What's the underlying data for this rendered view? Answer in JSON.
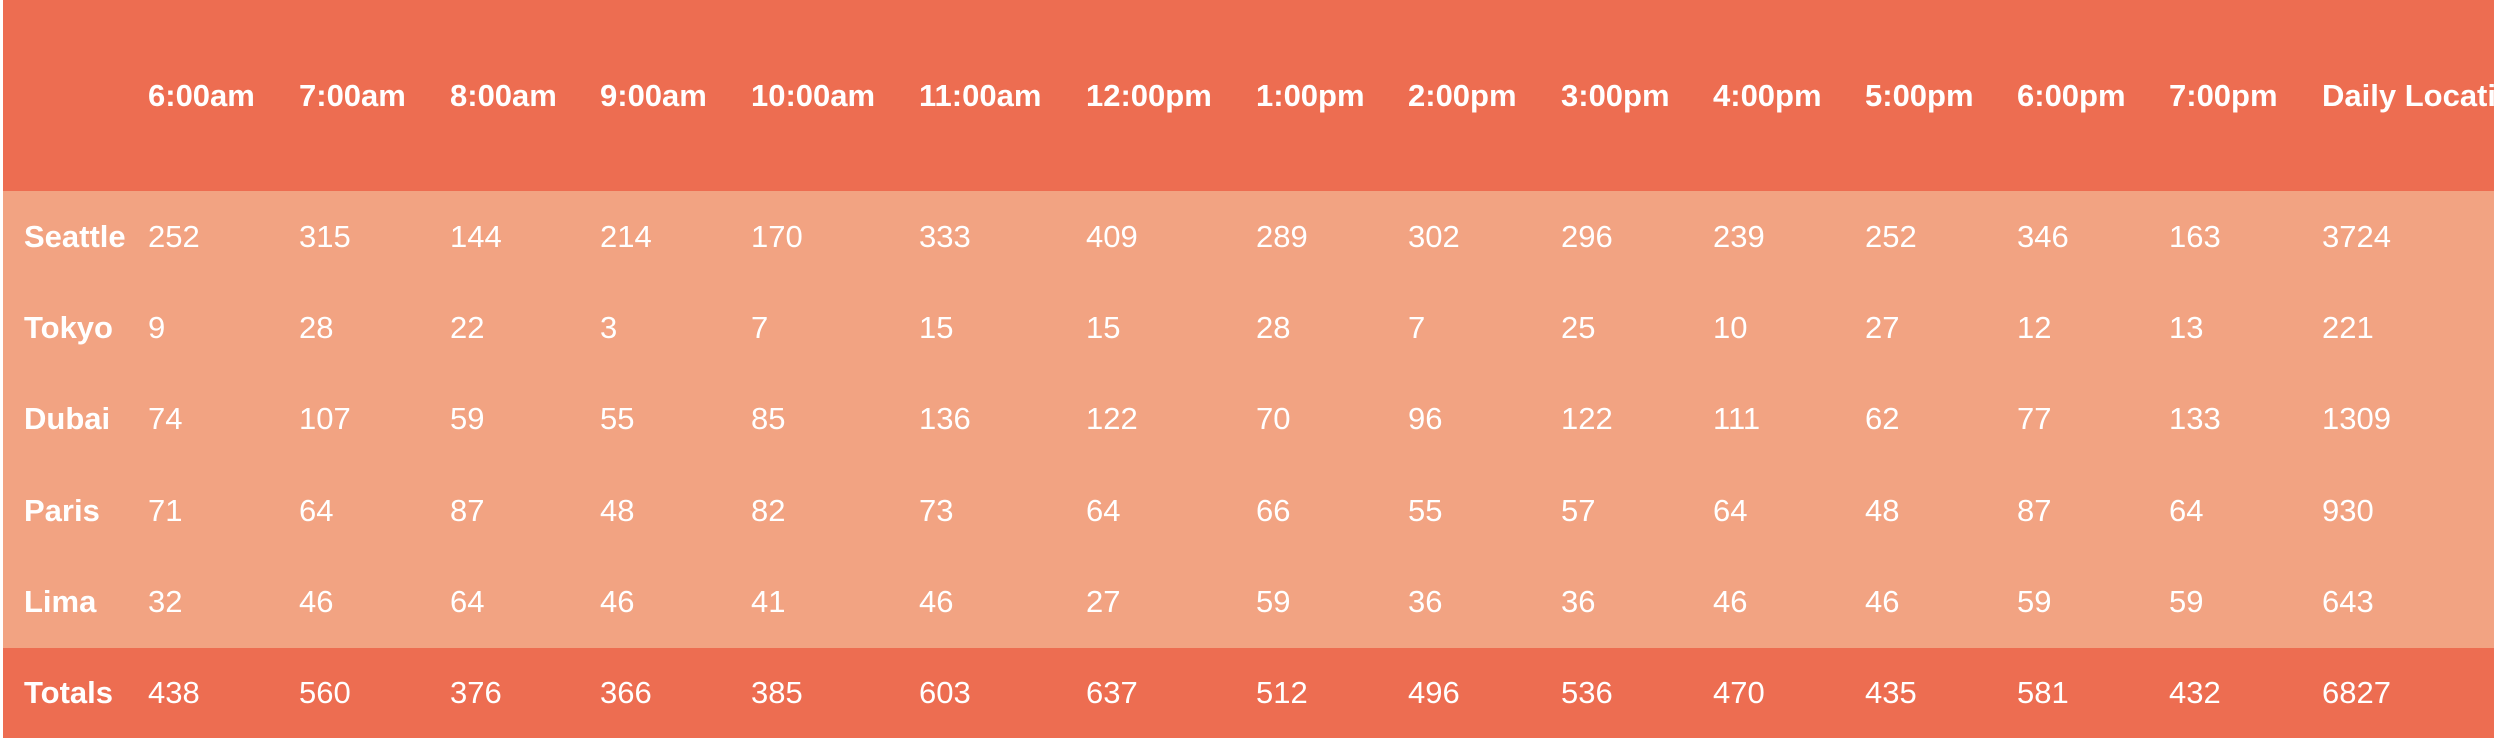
{
  "table": {
    "corner": "",
    "hours": [
      "6:00am",
      "7:00am",
      "8:00am",
      "9:00am",
      "10:00am",
      "11:00am",
      "12:00pm",
      "1:00pm",
      "2:00pm",
      "3:00pm",
      "4:00pm",
      "5:00pm",
      "6:00pm",
      "7:00pm"
    ],
    "total_header": "Daily Location Total",
    "rows": [
      {
        "location": "Seattle",
        "values": [
          "252",
          "315",
          "144",
          "214",
          "170",
          "333",
          "409",
          "289",
          "302",
          "296",
          "239",
          "252",
          "346",
          "163"
        ],
        "total": "3724"
      },
      {
        "location": "Tokyo",
        "values": [
          "9",
          "28",
          "22",
          "3",
          "7",
          "15",
          "15",
          "28",
          "7",
          "25",
          "10",
          "27",
          "12",
          "13"
        ],
        "total": "221"
      },
      {
        "location": "Dubai",
        "values": [
          "74",
          "107",
          "59",
          "55",
          "85",
          "136",
          "122",
          "70",
          "96",
          "122",
          "111",
          "62",
          "77",
          "133"
        ],
        "total": "1309"
      },
      {
        "location": "Paris",
        "values": [
          "71",
          "64",
          "87",
          "48",
          "82",
          "73",
          "64",
          "66",
          "55",
          "57",
          "64",
          "48",
          "87",
          "64"
        ],
        "total": "930"
      },
      {
        "location": "Lima",
        "values": [
          "32",
          "46",
          "64",
          "46",
          "41",
          "46",
          "27",
          "59",
          "36",
          "36",
          "46",
          "46",
          "59",
          "59"
        ],
        "total": "643"
      }
    ],
    "footer": {
      "label": "Totals",
      "values": [
        "438",
        "560",
        "376",
        "366",
        "385",
        "603",
        "637",
        "512",
        "496",
        "536",
        "470",
        "435",
        "581",
        "432"
      ],
      "total": "6827"
    },
    "colors": {
      "header_bg": "#ed6d51",
      "body_bg": "#f2a382",
      "text": "#ffffff"
    }
  }
}
